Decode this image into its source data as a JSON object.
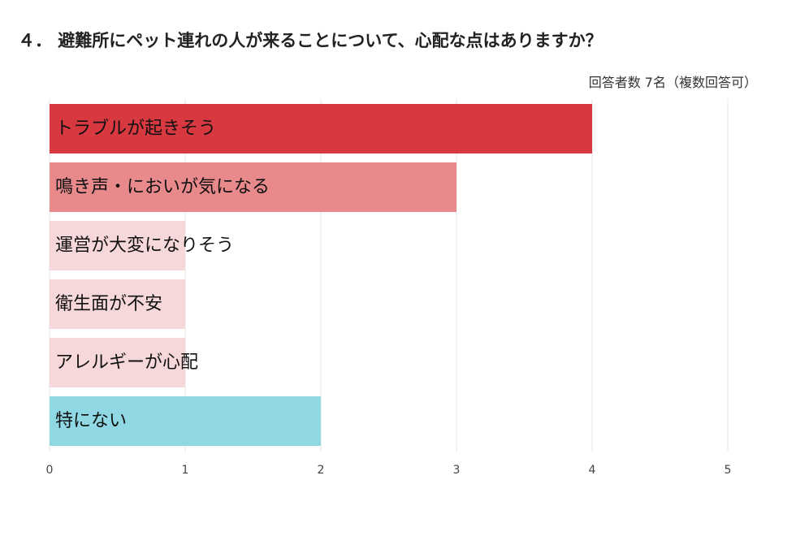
{
  "title": "４． 避難所にペット連れの人が来ることについて、心配な点はありますか？",
  "subtitle": "回答者数 7名（複数回答可）",
  "chart_data": {
    "type": "bar",
    "orientation": "horizontal",
    "categories": [
      "トラブルが起きそう",
      "鳴き声・においが気になる",
      "運営が大変になりそう",
      "衛生面が不安",
      "アレルギーが心配",
      "特にない"
    ],
    "values": [
      4,
      3,
      1,
      1,
      1,
      2
    ],
    "colors": [
      "#d8383f",
      "#e8898c",
      "#f7d8da",
      "#f7d8da",
      "#f7d8da",
      "#8fd8e4"
    ],
    "xlim": [
      0,
      5
    ],
    "xticks": [
      0,
      1,
      2,
      3,
      4,
      5
    ],
    "grid": true
  }
}
